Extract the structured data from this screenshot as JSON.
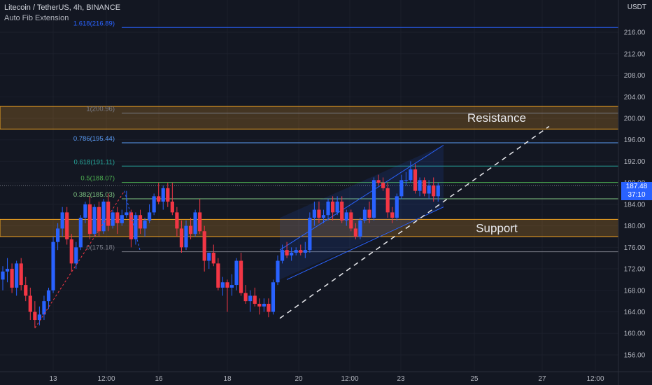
{
  "header": {
    "symbol": "Litecoin / TetherUS, 4h, BINANCE",
    "indicator": "Auto Fib Extension",
    "unit": "USDT"
  },
  "current_price": {
    "price": "187.48",
    "countdown": "37:10"
  },
  "colors": {
    "background": "#131722",
    "up": "#2962ff",
    "down": "#f23645",
    "zone": "#f5a623",
    "channel": "#2962ff"
  },
  "chart_data": {
    "type": "candlestick",
    "ylim": [
      153,
      222
    ],
    "y_ticks": [
      156,
      160,
      164,
      168,
      172,
      176,
      180,
      184,
      188,
      192,
      196,
      200,
      204,
      208,
      212,
      216
    ],
    "x_ticks": [
      "13",
      "12:00",
      "16",
      "18",
      "20",
      "12:00",
      "23",
      "25",
      "27",
      "12:00"
    ],
    "candles": [
      [
        170,
        172.5,
        168,
        171.5
      ],
      [
        171.5,
        174,
        169.5,
        172
      ],
      [
        172,
        173,
        167.5,
        168.5
      ],
      [
        168.5,
        173.5,
        167,
        173
      ],
      [
        173,
        174,
        168,
        169
      ],
      [
        169,
        170.5,
        166,
        167
      ],
      [
        167,
        168.5,
        162.5,
        164
      ],
      [
        164,
        166,
        161,
        162.5
      ],
      [
        162.5,
        165,
        161.5,
        163.5
      ],
      [
        163.5,
        167,
        162.5,
        166
      ],
      [
        166,
        168.5,
        164.5,
        168
      ],
      [
        168,
        178,
        167.5,
        177
      ],
      [
        177,
        180.5,
        175.5,
        179.5
      ],
      [
        179.5,
        183.5,
        178,
        182.5
      ],
      [
        182.5,
        183.5,
        176.5,
        177.5
      ],
      [
        177.5,
        178.5,
        171.5,
        173
      ],
      [
        173,
        177,
        172,
        176
      ],
      [
        176,
        182,
        175.5,
        181.5
      ],
      [
        181.5,
        184.5,
        180.5,
        184
      ],
      [
        184,
        185.5,
        177.5,
        178.5
      ],
      [
        178.5,
        184,
        178,
        183.5
      ],
      [
        183.5,
        184.5,
        178,
        179
      ],
      [
        179,
        185,
        178.5,
        184.5
      ],
      [
        184.5,
        186,
        179,
        180
      ],
      [
        180,
        183,
        179.5,
        182.5
      ],
      [
        182.5,
        183.5,
        178.5,
        180.5
      ],
      [
        180.5,
        183,
        180,
        182
      ],
      [
        182,
        186.5,
        181.5,
        182.5
      ],
      [
        182.5,
        183,
        176,
        177.5
      ],
      [
        177.5,
        182.5,
        176.5,
        182
      ],
      [
        182,
        183,
        178.5,
        179.5
      ],
      [
        179.5,
        181.5,
        178,
        181
      ],
      [
        181,
        184,
        180.5,
        182.5
      ],
      [
        182.5,
        186,
        182,
        185.5
      ],
      [
        185.5,
        188,
        184,
        184.5
      ],
      [
        184.5,
        187.5,
        183,
        187
      ],
      [
        187,
        188,
        183.5,
        184.5
      ],
      [
        184.5,
        188,
        182,
        182.5
      ],
      [
        182.5,
        183.5,
        178,
        179.5
      ],
      [
        179.5,
        181,
        175,
        176
      ],
      [
        176,
        181,
        175.5,
        180
      ],
      [
        180,
        181.5,
        177.5,
        178.5
      ],
      [
        178.5,
        183,
        178,
        182.5
      ],
      [
        182.5,
        185,
        178.5,
        179
      ],
      [
        179,
        180,
        171.5,
        173.5
      ],
      [
        173.5,
        175,
        172,
        175
      ],
      [
        175,
        176.5,
        172.5,
        173
      ],
      [
        173,
        174,
        168,
        168.5
      ],
      [
        168.5,
        170.5,
        167,
        169.5
      ],
      [
        169.5,
        170,
        164,
        168.5
      ],
      [
        168.5,
        171,
        167,
        169
      ],
      [
        169,
        174,
        168,
        173.5
      ],
      [
        173.5,
        175,
        167,
        167.5
      ],
      [
        167.5,
        169,
        165.5,
        166
      ],
      [
        166,
        168,
        164,
        167
      ],
      [
        167,
        168.5,
        165,
        165.5
      ],
      [
        165.5,
        166.5,
        163.5,
        165
      ],
      [
        165,
        166.5,
        164,
        165.5
      ],
      [
        165.5,
        166.5,
        163,
        164
      ],
      [
        164,
        170,
        163.5,
        169.5
      ],
      [
        169.5,
        174.5,
        169,
        173.5
      ],
      [
        173.5,
        176.5,
        173,
        175.5
      ],
      [
        175.5,
        177,
        174,
        174.5
      ],
      [
        174.5,
        176,
        173.5,
        175
      ],
      [
        175,
        176,
        174.5,
        175.5
      ],
      [
        175.5,
        176.5,
        174.5,
        175
      ],
      [
        175,
        177,
        174,
        175.5
      ],
      [
        175.5,
        182.5,
        175,
        181.5
      ],
      [
        181.5,
        184.5,
        180,
        183
      ],
      [
        183,
        184.5,
        180.5,
        181.5
      ],
      [
        181.5,
        183,
        180.5,
        182
      ],
      [
        182,
        185,
        181,
        184.5
      ],
      [
        184.5,
        185.5,
        181,
        182.5
      ],
      [
        182.5,
        185.5,
        182,
        184.5
      ],
      [
        184.5,
        185.5,
        180.5,
        181
      ],
      [
        181,
        183,
        180,
        182.5
      ],
      [
        182.5,
        183,
        179,
        179.5
      ],
      [
        179.5,
        180.5,
        177.5,
        178
      ],
      [
        178,
        181.5,
        177.5,
        181
      ],
      [
        181,
        183.5,
        180.5,
        183
      ],
      [
        183,
        184.5,
        180.5,
        181.5
      ],
      [
        181.5,
        189,
        181,
        188.5
      ],
      [
        188.5,
        189.5,
        187.5,
        188
      ],
      [
        188,
        189,
        186.5,
        187
      ],
      [
        187,
        188,
        181.5,
        182.5
      ],
      [
        182.5,
        183.5,
        180.5,
        181.5
      ],
      [
        181.5,
        186,
        181,
        185.5
      ],
      [
        185.5,
        189.5,
        185,
        188.5
      ],
      [
        188.5,
        190,
        187.5,
        188.5
      ],
      [
        188.5,
        192,
        188,
        190.5
      ],
      [
        190.5,
        191.5,
        186,
        186.5
      ],
      [
        186.5,
        189,
        185.5,
        188.5
      ],
      [
        188.5,
        189,
        185.5,
        186
      ],
      [
        186,
        188.5,
        185,
        187.5
      ],
      [
        187.5,
        189,
        184.5,
        185.5
      ],
      [
        185.5,
        188,
        184.5,
        187.5
      ]
    ],
    "fib_levels": [
      {
        "label": "1.618(216.89)",
        "value": 216.89,
        "color": "#2962ff"
      },
      {
        "label": "1(200.96)",
        "value": 200.96,
        "color": "#787b86"
      },
      {
        "label": "0.786(195.44)",
        "value": 195.44,
        "color": "#5b9cf6"
      },
      {
        "label": "0.618(191.11)",
        "value": 191.11,
        "color": "#26a69a"
      },
      {
        "label": "0.5(188.07)",
        "value": 188.07,
        "color": "#4caf50"
      },
      {
        "label": "0.382(185.03)",
        "value": 185.03,
        "color": "#81c784"
      },
      {
        "label": "0(175.18)",
        "value": 175.18,
        "color": "#787b86"
      }
    ],
    "zones": [
      {
        "label": "Resistance",
        "top": 202.2,
        "bottom": 198
      },
      {
        "label": "Support",
        "top": 181.2,
        "bottom": 178
      }
    ],
    "current_value": 187.48
  }
}
